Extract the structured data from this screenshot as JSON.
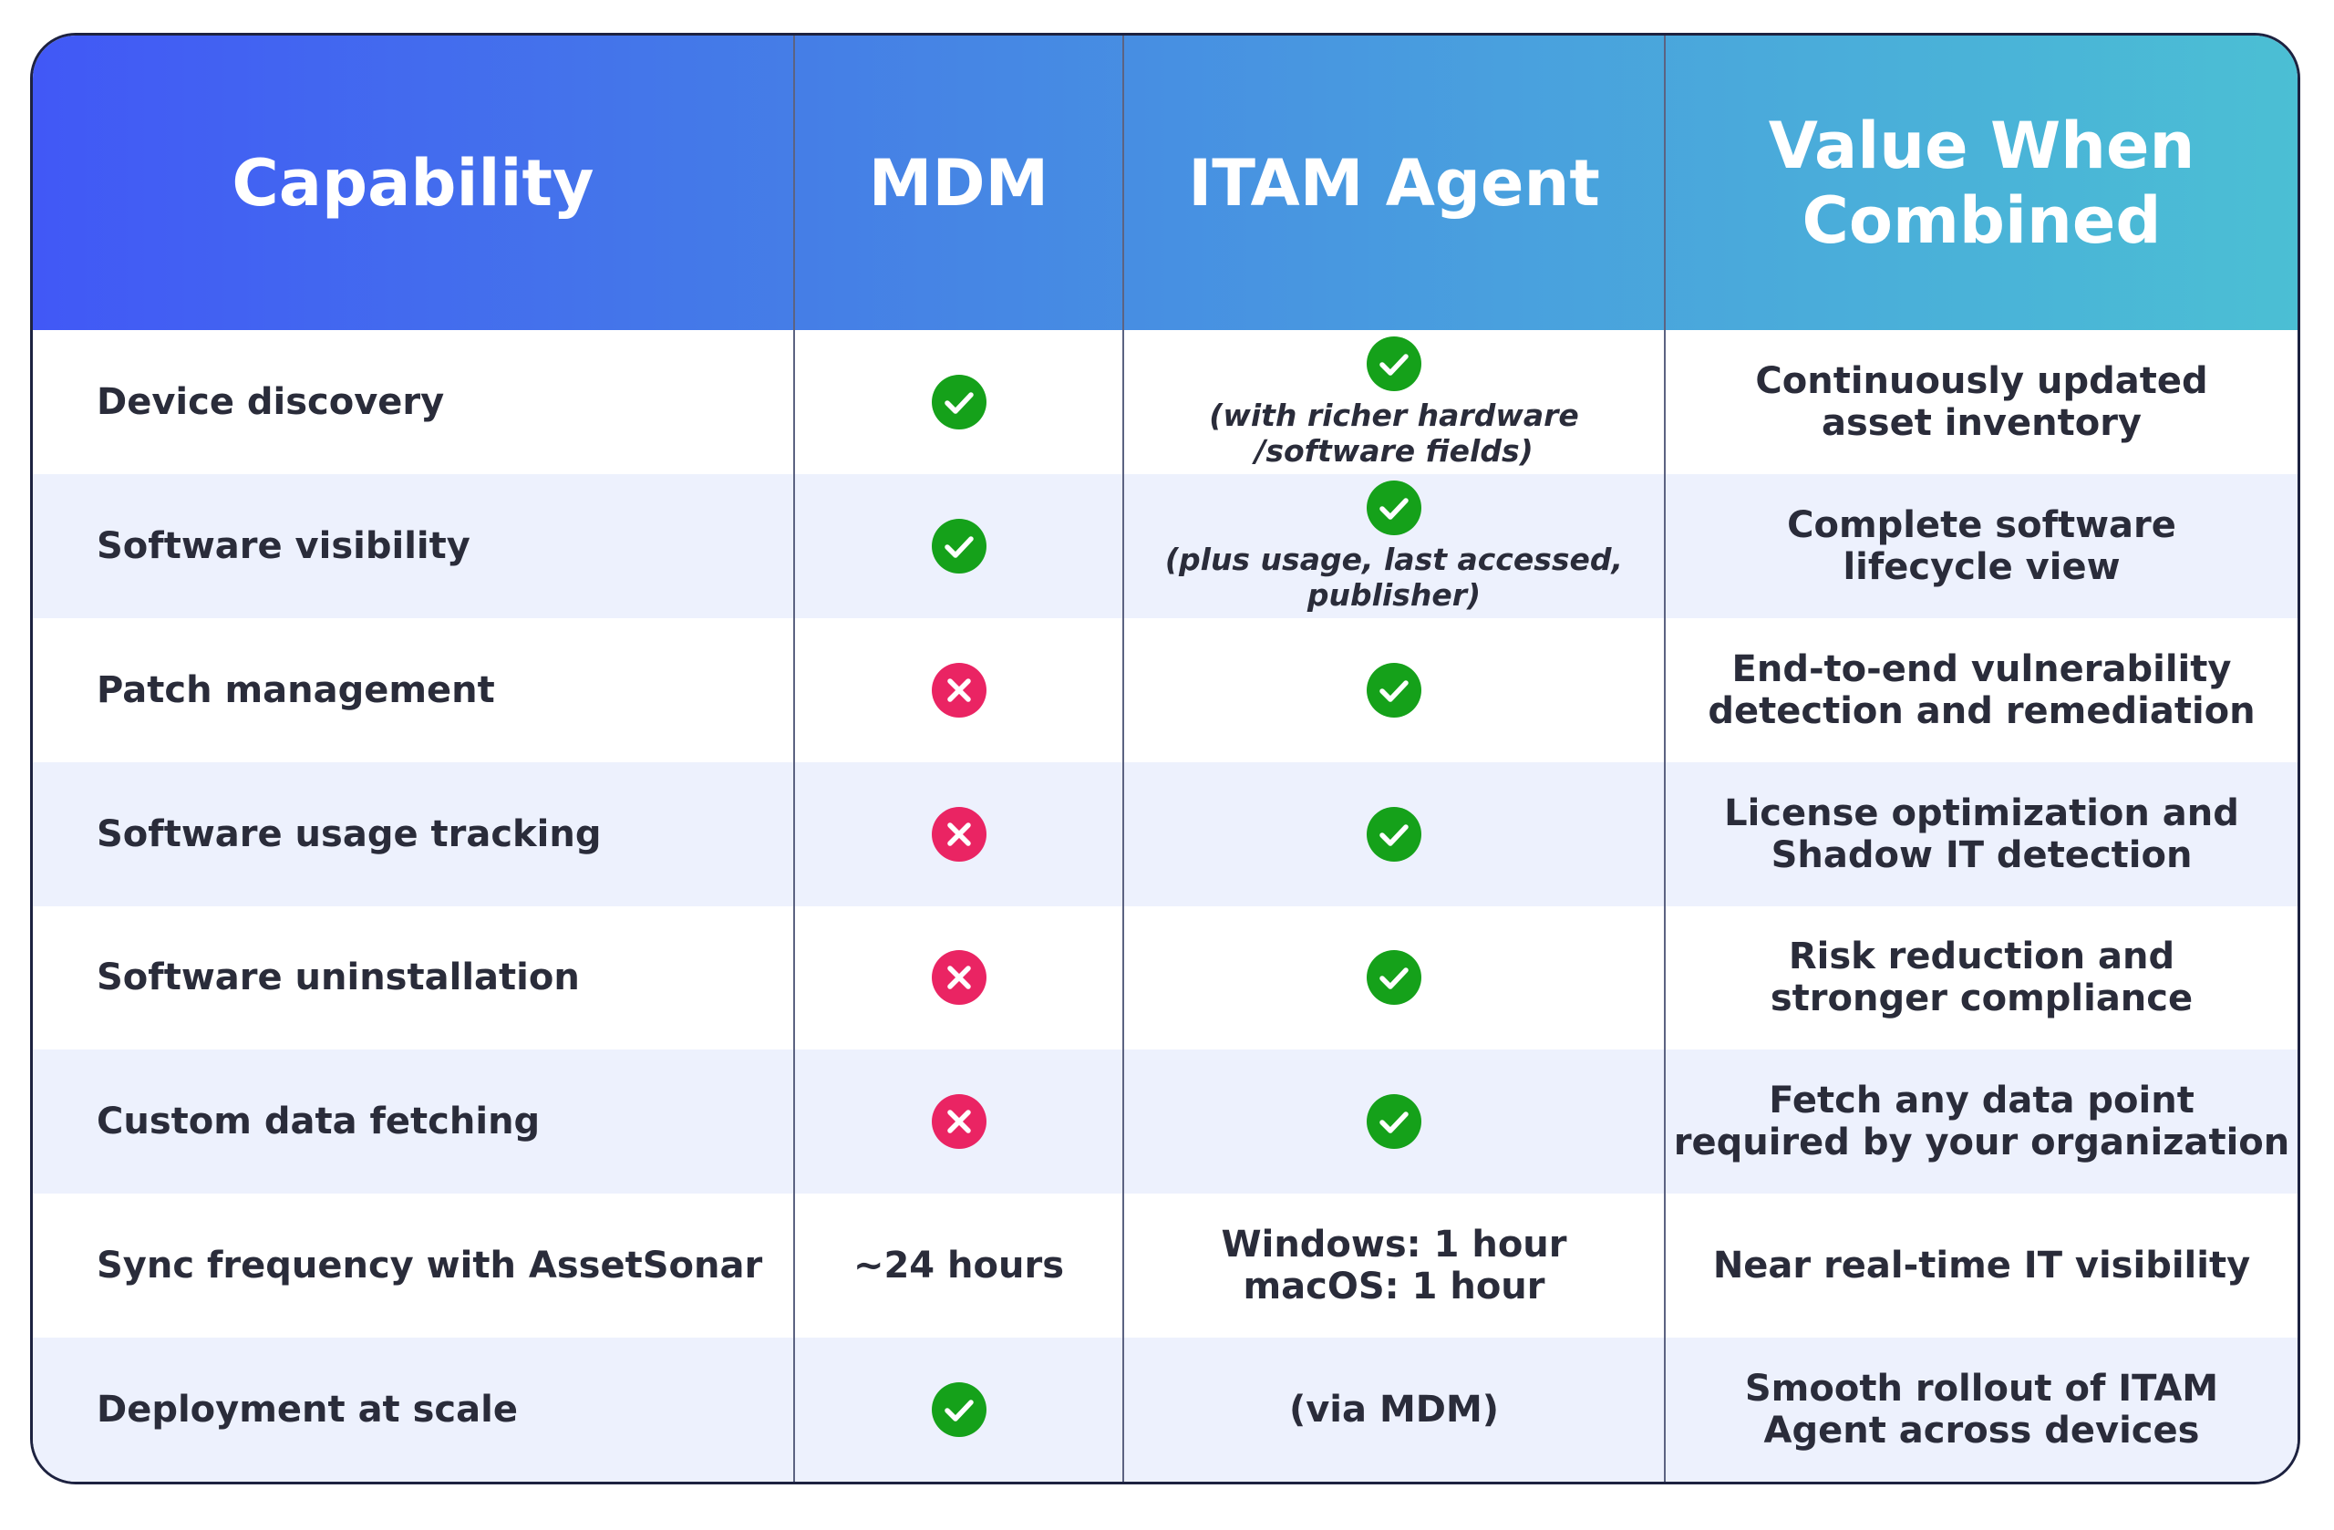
{
  "table": {
    "header": [
      "Capability",
      "MDM",
      "ITAM Agent",
      "Value When\nCombined"
    ],
    "rows": [
      {
        "capability": "Device discovery",
        "itam": "(with richer hardware\n/software fields)",
        "value": "Continuously updated\nasset inventory"
      },
      {
        "capability": "Software visibility",
        "itam": "(plus usage, last accessed,\npublisher)",
        "value": "Complete software\nlifecycle view"
      },
      {
        "capability": "Patch management",
        "value": "End-to-end vulnerability\ndetection and remediation"
      },
      {
        "capability": "Software usage tracking",
        "value": "License optimization and\nShadow IT detection"
      },
      {
        "capability": "Software uninstallation",
        "value": "Risk reduction and\nstronger compliance"
      },
      {
        "capability": "Custom data fetching",
        "value": "Fetch any data point\nrequired by your organization"
      },
      {
        "capability": "Sync frequency with AssetSonar",
        "mdm": "~24 hours",
        "itam": "Windows: 1 hour\nmacOS: 1 hour",
        "value": "Near real-time IT visibility"
      },
      {
        "capability": "Deployment at scale",
        "itam": "(via MDM)",
        "value": "Smooth rollout of ITAM\nAgent across devices"
      }
    ]
  }
}
